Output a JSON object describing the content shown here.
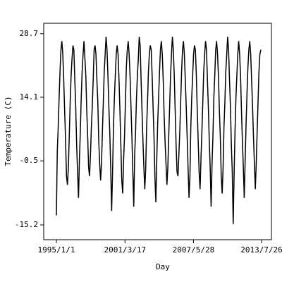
{
  "chart_data": {
    "type": "line",
    "x_label": "Day",
    "y_label": "Temperature (C)",
    "color": "#000000",
    "xlim": [
      "1993/11/8",
      "2014/6/17"
    ],
    "xticks": [
      "1995/1/1",
      "2001/3/17",
      "2007/5/28",
      "2013/7/26"
    ],
    "ylim": [
      -18.6,
      31.1
    ],
    "yticks": [
      28.7,
      14.1,
      -0.5,
      -15.2
    ],
    "x": [
      "1995/1/1",
      "1995/2/1",
      "1995/3/1",
      "1995/4/1",
      "1995/5/1",
      "1995/6/1",
      "1995/7/1",
      "1995/8/1",
      "1995/9/1",
      "1995/10/1",
      "1995/11/1",
      "1995/12/1",
      "1996/1/1",
      "1996/2/1",
      "1996/3/1",
      "1996/4/1",
      "1996/5/1",
      "1996/6/1",
      "1996/7/1",
      "1996/8/1",
      "1996/9/1",
      "1996/10/1",
      "1996/11/1",
      "1996/12/1",
      "1997/1/1",
      "1997/2/1",
      "1997/3/1",
      "1997/4/1",
      "1997/5/1",
      "1997/6/1",
      "1997/7/1",
      "1997/8/1",
      "1997/9/1",
      "1997/10/1",
      "1997/11/1",
      "1997/12/1",
      "1998/1/1",
      "1998/2/1",
      "1998/3/1",
      "1998/4/1",
      "1998/5/1",
      "1998/6/1",
      "1998/7/1",
      "1998/8/1",
      "1998/9/1",
      "1998/10/1",
      "1998/11/1",
      "1998/12/1",
      "1999/1/1",
      "1999/2/1",
      "1999/3/1",
      "1999/4/1",
      "1999/5/1",
      "1999/6/1",
      "1999/7/1",
      "1999/8/1",
      "1999/9/1",
      "1999/10/1",
      "1999/11/1",
      "1999/12/1",
      "2000/1/1",
      "2000/2/1",
      "2000/3/1",
      "2000/4/1",
      "2000/5/1",
      "2000/6/1",
      "2000/7/1",
      "2000/8/1",
      "2000/9/1",
      "2000/10/1",
      "2000/11/1",
      "2000/12/1",
      "2001/1/1",
      "2001/2/1",
      "2001/3/1",
      "2001/4/1",
      "2001/5/1",
      "2001/6/1",
      "2001/7/1",
      "2001/8/1",
      "2001/9/1",
      "2001/10/1",
      "2001/11/1",
      "2001/12/1",
      "2002/1/1",
      "2002/2/1",
      "2002/3/1",
      "2002/4/1",
      "2002/5/1",
      "2002/6/1",
      "2002/7/1",
      "2002/8/1",
      "2002/9/1",
      "2002/10/1",
      "2002/11/1",
      "2002/12/1",
      "2003/1/1",
      "2003/2/1",
      "2003/3/1",
      "2003/4/1",
      "2003/5/1",
      "2003/6/1",
      "2003/7/1",
      "2003/8/1",
      "2003/9/1",
      "2003/10/1",
      "2003/11/1",
      "2003/12/1",
      "2004/1/1",
      "2004/2/1",
      "2004/3/1",
      "2004/4/1",
      "2004/5/1",
      "2004/6/1",
      "2004/7/1",
      "2004/8/1",
      "2004/9/1",
      "2004/10/1",
      "2004/11/1",
      "2004/12/1",
      "2005/1/1",
      "2005/2/1",
      "2005/3/1",
      "2005/4/1",
      "2005/5/1",
      "2005/6/1",
      "2005/7/1",
      "2005/8/1",
      "2005/9/1",
      "2005/10/1",
      "2005/11/1",
      "2005/12/1",
      "2006/1/1",
      "2006/2/1",
      "2006/3/1",
      "2006/4/1",
      "2006/5/1",
      "2006/6/1",
      "2006/7/1",
      "2006/8/1",
      "2006/9/1",
      "2006/10/1",
      "2006/11/1",
      "2006/12/1",
      "2007/1/1",
      "2007/2/1",
      "2007/3/1",
      "2007/4/1",
      "2007/5/1",
      "2007/6/1",
      "2007/7/1",
      "2007/8/1",
      "2007/9/1",
      "2007/10/1",
      "2007/11/1",
      "2007/12/1",
      "2008/1/1",
      "2008/2/1",
      "2008/3/1",
      "2008/4/1",
      "2008/5/1",
      "2008/6/1",
      "2008/7/1",
      "2008/8/1",
      "2008/9/1",
      "2008/10/1",
      "2008/11/1",
      "2008/12/1",
      "2009/1/1",
      "2009/2/1",
      "2009/3/1",
      "2009/4/1",
      "2009/5/1",
      "2009/6/1",
      "2009/7/1",
      "2009/8/1",
      "2009/9/1",
      "2009/10/1",
      "2009/11/1",
      "2009/12/1",
      "2010/1/1",
      "2010/2/1",
      "2010/3/1",
      "2010/4/1",
      "2010/5/1",
      "2010/6/1",
      "2010/7/1",
      "2010/8/1",
      "2010/9/1",
      "2010/10/1",
      "2010/11/1",
      "2010/12/1",
      "2011/1/1",
      "2011/2/1",
      "2011/3/1",
      "2011/4/1",
      "2011/5/1",
      "2011/6/1",
      "2011/7/1",
      "2011/8/1",
      "2011/9/1",
      "2011/10/1",
      "2011/11/1",
      "2011/12/1",
      "2012/1/1",
      "2012/2/1",
      "2012/3/1",
      "2012/4/1",
      "2012/5/1",
      "2012/6/1",
      "2012/7/1",
      "2012/8/1",
      "2012/9/1",
      "2012/10/1",
      "2012/11/1",
      "2012/12/1",
      "2013/1/1",
      "2013/2/1",
      "2013/3/1",
      "2013/4/1",
      "2013/5/1",
      "2013/6/1",
      "2013/7/1"
    ],
    "values": [
      -13,
      2,
      7,
      14,
      20,
      25,
      27,
      24,
      18,
      11,
      4,
      -4,
      -6,
      -2,
      5,
      13,
      19,
      23,
      26,
      25,
      18,
      12,
      3,
      -3,
      -9,
      0,
      6,
      14,
      20,
      24,
      27,
      23,
      19,
      11,
      5,
      -2,
      -4,
      1,
      7,
      12,
      18,
      25,
      26,
      24,
      18,
      13,
      4,
      -1,
      -5,
      -1,
      6,
      13,
      20,
      24,
      28,
      25,
      19,
      12,
      6,
      -2,
      -12,
      -3,
      7,
      14,
      19,
      24,
      26,
      24,
      18,
      11,
      3,
      -5,
      -8,
      0,
      5,
      13,
      21,
      25,
      27,
      24,
      19,
      12,
      5,
      -3,
      -11,
      1,
      6,
      14,
      19,
      23,
      28,
      26,
      18,
      11,
      4,
      -2,
      -7,
      -2,
      7,
      13,
      20,
      24,
      26,
      25,
      19,
      12,
      5,
      -4,
      -10,
      0,
      8,
      14,
      20,
      25,
      27,
      24,
      18,
      10,
      4,
      -1,
      -6,
      -2,
      5,
      12,
      19,
      24,
      28,
      25,
      19,
      11,
      3,
      -3,
      -4,
      1,
      6,
      13,
      20,
      25,
      27,
      24,
      18,
      12,
      5,
      -2,
      -9,
      -4,
      7,
      14,
      19,
      24,
      26,
      25,
      19,
      11,
      4,
      -3,
      -7,
      0,
      6,
      13,
      20,
      24,
      27,
      25,
      18,
      12,
      4,
      -2,
      -11,
      -1,
      5,
      14,
      19,
      25,
      27,
      24,
      19,
      11,
      5,
      -4,
      -8,
      -2,
      7,
      13,
      20,
      24,
      28,
      25,
      18,
      12,
      3,
      -3,
      -15,
      -3,
      6,
      14,
      19,
      24,
      27,
      24,
      19,
      11,
      4,
      -2,
      -9,
      0,
      8,
      15,
      21,
      25,
      27,
      24,
      18,
      12,
      5,
      -1,
      -7,
      -1,
      6,
      13,
      20,
      24,
      25
    ]
  }
}
